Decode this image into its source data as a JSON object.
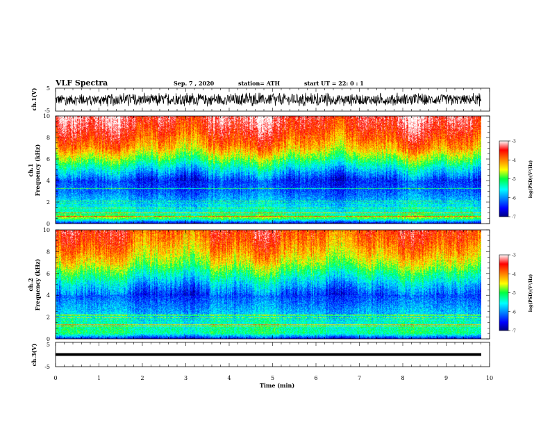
{
  "chart_data": {
    "type": "heatmap",
    "title": "VLF Spectra",
    "date": "Sep. 7 , 2020",
    "station": "station= ATH",
    "start_ut": "start  UT =  22: 0  : 1",
    "xlabel": "Time  (min)",
    "xlim": [
      0,
      10
    ],
    "x_ticks": [
      "0",
      "1",
      "2",
      "3",
      "4",
      "5",
      "6",
      "7",
      "8",
      "9",
      "10"
    ],
    "panels": [
      {
        "kind": "waveform",
        "ylabel": "ch.1(V)",
        "ylim": [
          -5,
          5
        ],
        "y_ticks": [
          "5",
          "-5"
        ],
        "amplitude_range": [
          -3,
          3
        ]
      },
      {
        "kind": "spectrogram",
        "ylabel_channel": "ch.1",
        "ylabel": "Frequency  (kHz)",
        "ylim": [
          0,
          10
        ],
        "y_ticks": [
          "0",
          "2",
          "4",
          "6",
          "8",
          "10"
        ],
        "colorbar": {
          "label": "log(PSD)(V²/Hz)",
          "range": [
            -7,
            -3
          ],
          "ticks": [
            "-3",
            "-4",
            "-5",
            "-6",
            "-7"
          ]
        },
        "log_psd_profile": [
          {
            "f": 0.0,
            "v": -6.6
          },
          {
            "f": 0.5,
            "v": -4.8
          },
          {
            "f": 1.0,
            "v": -5.4
          },
          {
            "f": 2.0,
            "v": -5.8
          },
          {
            "f": 3.0,
            "v": -6.2
          },
          {
            "f": 4.0,
            "v": -6.4
          },
          {
            "f": 5.0,
            "v": -5.7
          },
          {
            "f": 6.0,
            "v": -4.9
          },
          {
            "f": 7.0,
            "v": -4.2
          },
          {
            "f": 8.0,
            "v": -3.8
          },
          {
            "f": 9.0,
            "v": -3.5
          },
          {
            "f": 10.0,
            "v": -3.3
          }
        ]
      },
      {
        "kind": "spectrogram",
        "ylabel_channel": "ch.2",
        "ylabel": "Frequency  (kHz)",
        "ylim": [
          0,
          10
        ],
        "y_ticks": [
          "0",
          "2",
          "4",
          "6",
          "8",
          "10"
        ],
        "colorbar": {
          "label": "log(PSD)(V²/Hz)",
          "range": [
            -7,
            -3
          ],
          "ticks": [
            "-3",
            "-4",
            "-5",
            "-6",
            "-7"
          ]
        },
        "log_psd_profile": [
          {
            "f": 0.0,
            "v": -6.5
          },
          {
            "f": 0.5,
            "v": -5.2
          },
          {
            "f": 1.0,
            "v": -5.3
          },
          {
            "f": 2.0,
            "v": -5.7
          },
          {
            "f": 3.0,
            "v": -6.0
          },
          {
            "f": 4.0,
            "v": -6.3
          },
          {
            "f": 5.0,
            "v": -5.8
          },
          {
            "f": 6.0,
            "v": -5.2
          },
          {
            "f": 7.0,
            "v": -4.6
          },
          {
            "f": 8.0,
            "v": -4.2
          },
          {
            "f": 9.0,
            "v": -3.9
          },
          {
            "f": 10.0,
            "v": -3.7
          }
        ]
      },
      {
        "kind": "waveform",
        "ylabel": "ch.3(V)",
        "ylim": [
          -5,
          5
        ],
        "y_ticks": [
          "5",
          "-5"
        ],
        "amplitude_range": [
          -0.3,
          0.3
        ]
      }
    ]
  }
}
